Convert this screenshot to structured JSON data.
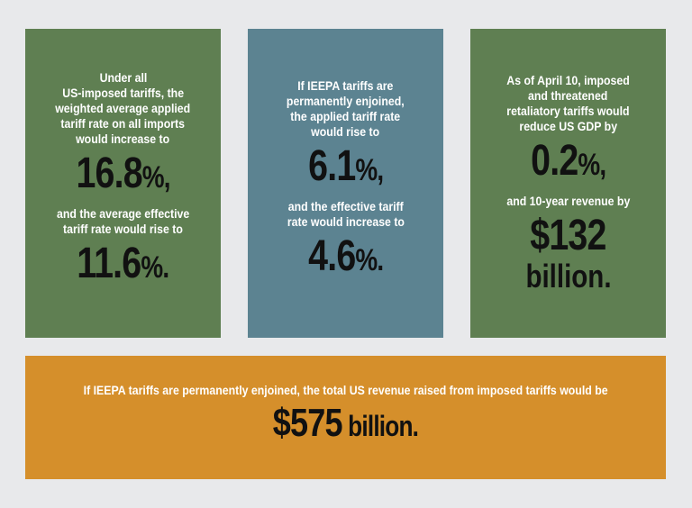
{
  "panels": [
    {
      "blocks": [
        {
          "lines": [
            "Under all",
            "US-imposed tariffs, the",
            "weighted average applied",
            "tariff rate on all imports",
            "would increase to"
          ]
        },
        {
          "figure": "16.8",
          "unit": "%,"
        },
        {
          "lines": [
            "and the average effective",
            "tariff rate would rise to"
          ]
        },
        {
          "figure": "11.6",
          "unit": "%."
        }
      ]
    },
    {
      "blocks": [
        {
          "lines": [
            "If IEEPA tariffs are",
            "permanently enjoined,",
            "the applied tariff rate",
            "would rise to"
          ]
        },
        {
          "figure": "6.1",
          "unit": "%,"
        },
        {
          "lines": [
            "and the effective tariff",
            "rate would increase to"
          ]
        },
        {
          "figure": "4.6",
          "unit": "%."
        }
      ]
    },
    {
      "blocks": [
        {
          "lines": [
            "As of April 10, imposed",
            "and threatened",
            "retaliatory tariffs would",
            "reduce US GDP by"
          ]
        },
        {
          "figure": "0.2",
          "unit": "%,"
        },
        {
          "lines": [
            "and 10-year revenue by"
          ]
        },
        {
          "figure": "$132"
        },
        {
          "word": "billion."
        }
      ]
    }
  ],
  "footer": {
    "blocks": [
      {
        "lines": [
          "If IEEPA tariffs are permanently enjoined, the total US revenue raised from imposed tariffs would be"
        ]
      },
      {
        "figure": "$575",
        "unit": " billion."
      }
    ]
  }
}
